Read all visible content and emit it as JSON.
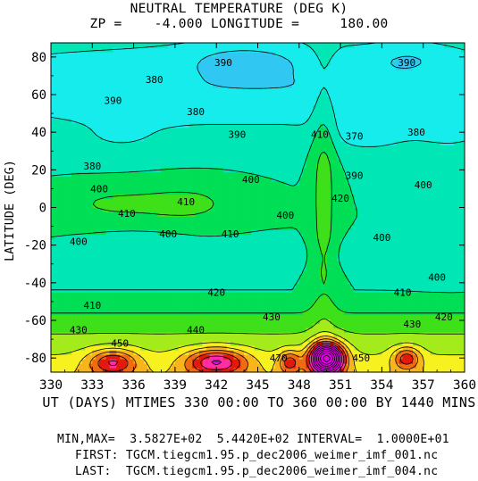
{
  "chart_data": {
    "type": "heatmap",
    "title": "NEUTRAL TEMPERATURE (DEG K)",
    "subtitle": "ZP =    -4.000 LONGITUDE =     180.00",
    "xlabel": "UT (DAYS) MTIMES 330 00:00 TO 360 00:00 BY 1440 MINS",
    "ylabel": "LATITUDE (DEG)",
    "xlim": [
      330,
      360
    ],
    "ylim": [
      -87.5,
      87.5
    ],
    "x_ticks": [
      "330",
      "333",
      "336",
      "339",
      "342",
      "345",
      "348",
      "351",
      "354",
      "357",
      "360"
    ],
    "y_ticks": [
      "80",
      "60",
      "40",
      "20",
      "0",
      "-20",
      "-40",
      "-60",
      "-80"
    ],
    "value_range": [
      358.27,
      544.2
    ],
    "contour_interval": 10,
    "contour_labels": [
      {
        "text": "380",
        "x": 337.5,
        "y": 68
      },
      {
        "text": "390",
        "x": 342.5,
        "y": 77
      },
      {
        "text": "390",
        "x": 355.8,
        "y": 77
      },
      {
        "text": "390",
        "x": 334.5,
        "y": 57
      },
      {
        "text": "380",
        "x": 340.5,
        "y": 51
      },
      {
        "text": "390",
        "x": 343.5,
        "y": 39
      },
      {
        "text": "410",
        "x": 349.5,
        "y": 39
      },
      {
        "text": "370",
        "x": 352.0,
        "y": 38
      },
      {
        "text": "380",
        "x": 356.5,
        "y": 40
      },
      {
        "text": "380",
        "x": 333.0,
        "y": 22
      },
      {
        "text": "400",
        "x": 344.5,
        "y": 15
      },
      {
        "text": "390",
        "x": 352.0,
        "y": 17
      },
      {
        "text": "400",
        "x": 357.0,
        "y": 12
      },
      {
        "text": "400",
        "x": 333.5,
        "y": 10
      },
      {
        "text": "420",
        "x": 351.0,
        "y": 5
      },
      {
        "text": "410",
        "x": 335.5,
        "y": -3
      },
      {
        "text": "410",
        "x": 339.8,
        "y": 3
      },
      {
        "text": "400",
        "x": 347.0,
        "y": -4
      },
      {
        "text": "410",
        "x": 343.0,
        "y": -14
      },
      {
        "text": "400",
        "x": 338.5,
        "y": -14
      },
      {
        "text": "400",
        "x": 332.0,
        "y": -18
      },
      {
        "text": "400",
        "x": 354.0,
        "y": -16
      },
      {
        "text": "400",
        "x": 358.0,
        "y": -37
      },
      {
        "text": "420",
        "x": 342.0,
        "y": -45
      },
      {
        "text": "410",
        "x": 333.0,
        "y": -52
      },
      {
        "text": "410",
        "x": 355.5,
        "y": -45
      },
      {
        "text": "430",
        "x": 346.0,
        "y": -58
      },
      {
        "text": "420",
        "x": 358.5,
        "y": -58
      },
      {
        "text": "430",
        "x": 332.0,
        "y": -65
      },
      {
        "text": "430",
        "x": 356.2,
        "y": -62
      },
      {
        "text": "440",
        "x": 340.5,
        "y": -65
      },
      {
        "text": "450",
        "x": 335.0,
        "y": -72
      },
      {
        "text": "470",
        "x": 346.5,
        "y": -80
      },
      {
        "text": "450",
        "x": 352.5,
        "y": -80
      }
    ]
  },
  "footer": {
    "minmax": "MIN,MAX=  3.5827E+02  5.4420E+02 INTERVAL=  1.0000E+01",
    "first": "FIRST: TGCM.tiegcm1.95.p_dec2006_weimer_imf_001.nc",
    "last": "LAST:  TGCM.tiegcm1.95.p_dec2006_weimer_imf_004.nc"
  },
  "colors": {
    "scale": [
      "#2c1fd0",
      "#2b55e6",
      "#2f8aef",
      "#30c7f2",
      "#16ecec",
      "#00e6b4",
      "#00df55",
      "#3ee01a",
      "#a4eb1c",
      "#f7f11f",
      "#f8b41c",
      "#ef6a14",
      "#e21a0e",
      "#ff2da6",
      "#e100e6"
    ]
  }
}
